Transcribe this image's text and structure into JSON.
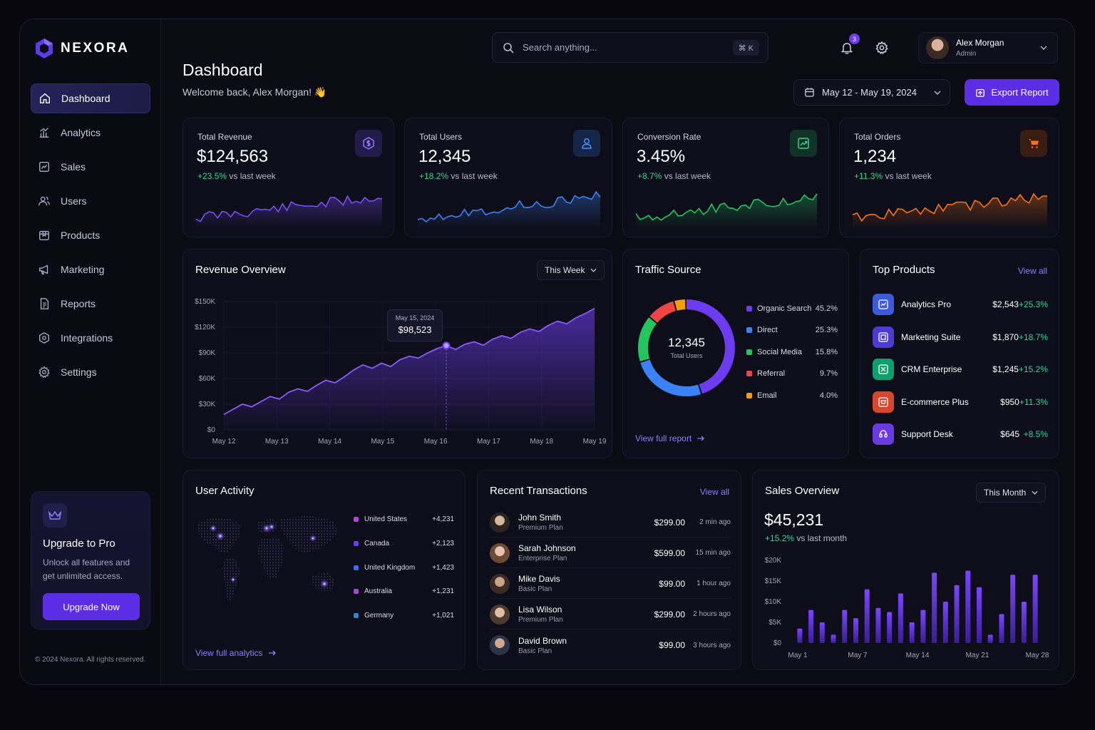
{
  "brand": {
    "name": "NEXORA"
  },
  "sidebar": {
    "items": [
      {
        "label": "Dashboard",
        "icon": "home-icon"
      },
      {
        "label": "Analytics",
        "icon": "analytics-icon"
      },
      {
        "label": "Sales",
        "icon": "sales-icon"
      },
      {
        "label": "Users",
        "icon": "users-icon"
      },
      {
        "label": "Products",
        "icon": "box-icon"
      },
      {
        "label": "Marketing",
        "icon": "megaphone-icon"
      },
      {
        "label": "Reports",
        "icon": "document-icon"
      },
      {
        "label": "Integrations",
        "icon": "integration-icon"
      },
      {
        "label": "Settings",
        "icon": "gear-icon"
      }
    ],
    "upgrade": {
      "title": "Upgrade to Pro",
      "text": "Unlock all features and get unlimited access.",
      "button": "Upgrade Now"
    },
    "copyright": "© 2024 Nexora. All rights reserved."
  },
  "header": {
    "search_placeholder": "Search anything...",
    "shortcut": "⌘ K",
    "notifications": "3",
    "user": {
      "name": "Alex Morgan",
      "role": "Admin"
    },
    "title": "Dashboard",
    "welcome": "Welcome back, Alex Morgan! 👋",
    "date_range": "May 12 - May 19, 2024",
    "export": "Export Report"
  },
  "kpis": [
    {
      "label": "Total Revenue",
      "value": "$124,563",
      "delta": "+23.5%",
      "suffix": "vs last week",
      "color": "#7c4dff"
    },
    {
      "label": "Total Users",
      "value": "12,345",
      "delta": "+18.2%",
      "suffix": "vs last week",
      "color": "#3b82f6"
    },
    {
      "label": "Conversion Rate",
      "value": "3.45%",
      "delta": "+8.7%",
      "suffix": "vs last week",
      "color": "#22c55e"
    },
    {
      "label": "Total Orders",
      "value": "1,234",
      "delta": "+11.3%",
      "suffix": "vs last week",
      "color": "#f97316"
    }
  ],
  "revenue": {
    "title": "Revenue Overview",
    "period": "This Week",
    "tooltip_date": "May 15, 2024",
    "tooltip_value": "$98,523"
  },
  "traffic": {
    "title": "Traffic Source",
    "center_value": "12,345",
    "center_label": "Total Users",
    "sources": [
      {
        "name": "Organic Search",
        "pct": "45.2%",
        "value": 45.2,
        "color": "#6d3cf0"
      },
      {
        "name": "Direct",
        "pct": "25.3%",
        "value": 25.3,
        "color": "#3b82f6"
      },
      {
        "name": "Social Media",
        "pct": "15.8%",
        "value": 15.8,
        "color": "#22c55e"
      },
      {
        "name": "Referral",
        "pct": "9.7%",
        "value": 9.7,
        "color": "#ef4444"
      },
      {
        "name": "Email",
        "pct": "4.0%",
        "value": 4.0,
        "color": "#f59e0b"
      }
    ],
    "link": "View full report"
  },
  "top_products": {
    "title": "Top Products",
    "link": "View all",
    "items": [
      {
        "name": "Analytics Pro",
        "revenue": "$2,543",
        "growth": "+25.3%",
        "color": "#3b5bdb"
      },
      {
        "name": "Marketing Suite",
        "revenue": "$1,870",
        "growth": "+18.7%",
        "color": "#4c3bcf"
      },
      {
        "name": "CRM Enterprise",
        "revenue": "$1,245",
        "growth": "+15.2%",
        "color": "#0f9f6e"
      },
      {
        "name": "E-commerce Plus",
        "revenue": "$950",
        "growth": "+11.3%",
        "color": "#d9462f"
      },
      {
        "name": "Support Desk",
        "revenue": "$645",
        "growth": "+8.5%",
        "color": "#6a3be0"
      }
    ]
  },
  "user_activity": {
    "title": "User Activity",
    "countries": [
      {
        "name": "United States",
        "value": "+4,231",
        "color": "#b14bd6"
      },
      {
        "name": "Canada",
        "value": "+2,123",
        "color": "#6d3cf0"
      },
      {
        "name": "United Kingdom",
        "value": "+1,423",
        "color": "#3b6ff0"
      },
      {
        "name": "Australia",
        "value": "+1,231",
        "color": "#a34bd0"
      },
      {
        "name": "Germany",
        "value": "+1,021",
        "color": "#3b82c6"
      }
    ],
    "link": "View full analytics"
  },
  "transactions": {
    "title": "Recent Transactions",
    "link": "View all",
    "items": [
      {
        "name": "John Smith",
        "plan": "Premium Plan",
        "amount": "$299.00",
        "time": "2 min ago"
      },
      {
        "name": "Sarah Johnson",
        "plan": "Enterprise Plan",
        "amount": "$599.00",
        "time": "15 min ago"
      },
      {
        "name": "Mike Davis",
        "plan": "Basic Plan",
        "amount": "$99.00",
        "time": "1 hour ago"
      },
      {
        "name": "Lisa Wilson",
        "plan": "Premium Plan",
        "amount": "$299.00",
        "time": "2 hours ago"
      },
      {
        "name": "David Brown",
        "plan": "Basic Plan",
        "amount": "$99.00",
        "time": "3 hours ago"
      }
    ]
  },
  "sales": {
    "title": "Sales Overview",
    "period": "This Month",
    "value": "$45,231",
    "delta": "+15.2%",
    "suffix": "vs last month"
  },
  "chart_data": [
    {
      "type": "area",
      "title": "Revenue Overview",
      "x_ticks": [
        "May 12",
        "May 13",
        "May 14",
        "May 15",
        "May 16",
        "May 17",
        "May 18",
        "May 19"
      ],
      "y_ticks": [
        "$150K",
        "$120K",
        "$90K",
        "$60K",
        "$30K",
        "$0"
      ],
      "ylim": [
        0,
        150000
      ],
      "values": [
        18000,
        24000,
        30000,
        27000,
        33000,
        39000,
        36000,
        44000,
        48000,
        45000,
        52000,
        58000,
        55000,
        62000,
        70000,
        76000,
        72000,
        78000,
        74000,
        82000,
        86000,
        84000,
        90000,
        95000,
        98523,
        94000,
        100000,
        103000,
        99000,
        106000,
        110000,
        107000,
        114000,
        118000,
        115000,
        122000,
        127000,
        124000,
        131000,
        136000,
        142000
      ]
    },
    {
      "type": "bar",
      "title": "Sales Overview",
      "x_ticks": [
        "May 1",
        "May 7",
        "May 14",
        "May 21",
        "May 28"
      ],
      "y_ticks": [
        "$20K",
        "$15K",
        "$10K",
        "$5K",
        "$0"
      ],
      "ylim": [
        0,
        20000
      ],
      "values": [
        3500,
        8000,
        5000,
        2000,
        8000,
        6000,
        13000,
        8500,
        7500,
        12000,
        5000,
        8000,
        17000,
        10000,
        14000,
        17500,
        13500,
        2000,
        7000,
        16500,
        10000,
        16500
      ]
    },
    {
      "type": "pie",
      "title": "Traffic Source",
      "categories": [
        "Organic Search",
        "Direct",
        "Social Media",
        "Referral",
        "Email"
      ],
      "values": [
        45.2,
        25.3,
        15.8,
        9.7,
        4.0
      ]
    }
  ]
}
